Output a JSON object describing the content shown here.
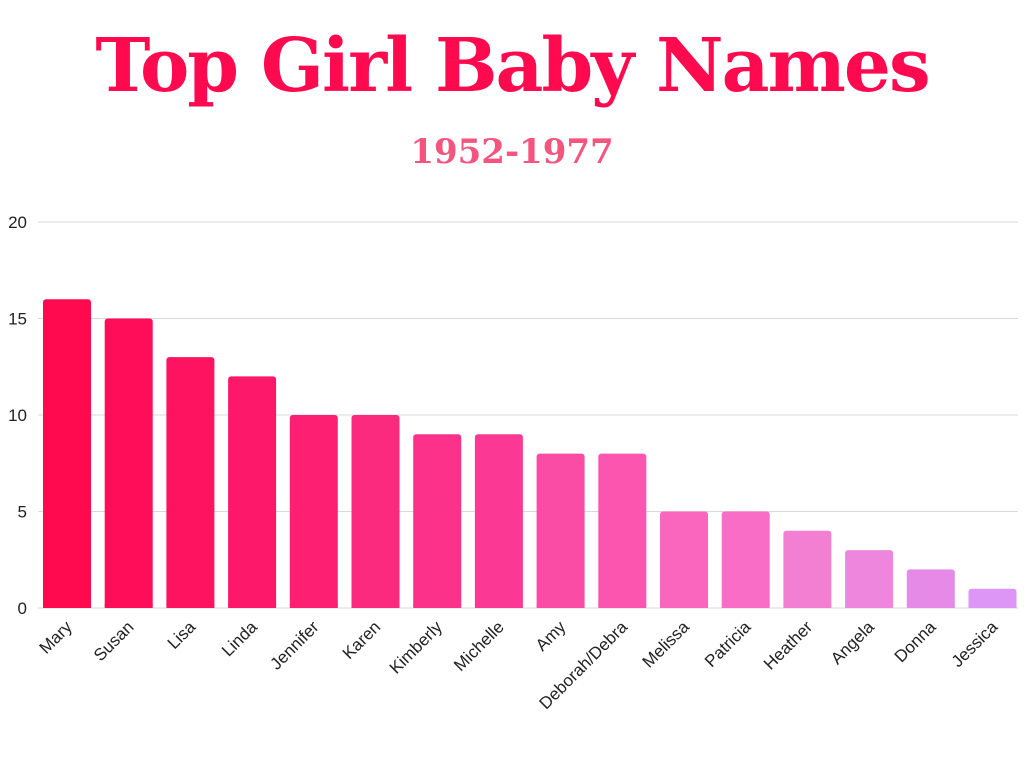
{
  "chart_data": {
    "type": "bar",
    "title": "Top Girl Baby Names",
    "subtitle": "1952-1977",
    "xlabel": "",
    "ylabel": "",
    "ylim": [
      0,
      20
    ],
    "yticks": [
      "0",
      "5",
      "10",
      "15",
      "20"
    ],
    "grid": true,
    "categories": [
      "Mary",
      "Susan",
      "Lisa",
      "Linda",
      "Jennifer",
      "Karen",
      "Kimberly",
      "Michelle",
      "Amy",
      "Deborah/Debra",
      "Melissa",
      "Patricia",
      "Heather",
      "Angela",
      "Donna",
      "Jessica"
    ],
    "values": [
      16,
      15,
      13,
      12,
      10,
      10,
      9,
      9,
      8,
      8,
      5,
      5,
      4,
      3,
      2,
      1
    ],
    "colors": [
      "#ff0a4f",
      "#ff0d58",
      "#fe1361",
      "#fd1869",
      "#fc1f72",
      "#fb2a7f",
      "#fb318a",
      "#fb3894",
      "#fb4ca5",
      "#fb55b0",
      "#fa66be",
      "#f96dc6",
      "#f27fd2",
      "#ee86de",
      "#e68ae8",
      "#dd95f6"
    ]
  }
}
